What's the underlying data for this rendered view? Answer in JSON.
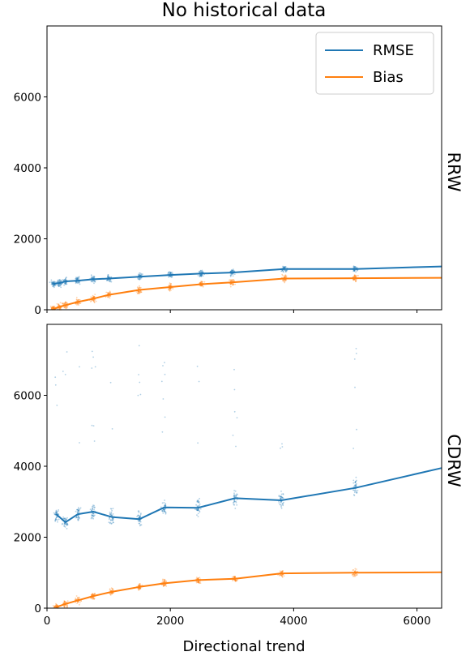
{
  "chart_data": [
    {
      "type": "line",
      "title": "No historical data",
      "facet_label": "RRW",
      "xlabel": "",
      "ylabel": "",
      "xlim": [
        0,
        6400
      ],
      "ylim": [
        0,
        8000
      ],
      "xticks": [],
      "yticks": [
        "0",
        "2000",
        "4000",
        "6000"
      ],
      "legend": {
        "position": "top-right",
        "entries": [
          "RMSE",
          "Bias"
        ]
      },
      "series": [
        {
          "name": "RMSE",
          "color": "#1f77b4",
          "x": [
            100,
            200,
            300,
            500,
            750,
            1000,
            1500,
            2000,
            2500,
            3000,
            3850,
            5000,
            6400
          ],
          "y": [
            730,
            750,
            800,
            820,
            860,
            880,
            930,
            980,
            1020,
            1050,
            1150,
            1150,
            1220
          ]
        },
        {
          "name": "Bias",
          "color": "#ff7f0e",
          "x": [
            100,
            200,
            300,
            500,
            750,
            1000,
            1500,
            2000,
            2500,
            3000,
            3850,
            5000,
            6400
          ],
          "y": [
            20,
            80,
            130,
            220,
            310,
            420,
            560,
            640,
            720,
            770,
            880,
            890,
            900
          ]
        }
      ]
    },
    {
      "type": "line",
      "title": "",
      "facet_label": "CDRW",
      "xlabel": "Directional trend",
      "ylabel": "",
      "xlim": [
        0,
        6400
      ],
      "ylim": [
        0,
        8000
      ],
      "xticks": [
        "0",
        "2000",
        "4000",
        "6000"
      ],
      "yticks": [
        "0",
        "2000",
        "4000",
        "6000"
      ],
      "series": [
        {
          "name": "RMSE",
          "color": "#1f77b4",
          "x": [
            150,
            300,
            500,
            750,
            1050,
            1500,
            1900,
            2450,
            3050,
            3800,
            5000,
            6400
          ],
          "y": [
            2650,
            2420,
            2650,
            2720,
            2570,
            2510,
            2840,
            2830,
            3100,
            3040,
            3390,
            3950
          ]
        },
        {
          "name": "Bias",
          "color": "#ff7f0e",
          "x": [
            150,
            300,
            500,
            750,
            1050,
            1500,
            1900,
            2450,
            3050,
            3800,
            5000,
            6400
          ],
          "y": [
            30,
            120,
            220,
            340,
            460,
            600,
            700,
            790,
            830,
            980,
            1000,
            1010
          ]
        }
      ]
    }
  ]
}
